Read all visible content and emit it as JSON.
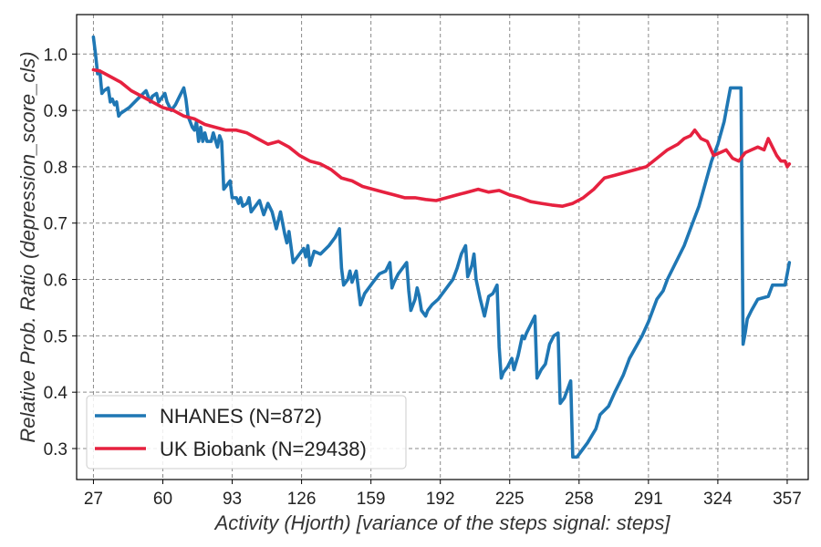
{
  "chart_data": {
    "type": "line",
    "xlabel": "Activity (Hjorth) [variance of the steps signal: steps]",
    "ylabel": "Relative Prob. Ratio (depression_score_cls)",
    "xlim": [
      19,
      367
    ],
    "ylim": [
      0.245,
      1.07
    ],
    "x_ticks": [
      27,
      60,
      93,
      126,
      159,
      192,
      225,
      258,
      291,
      324,
      357
    ],
    "y_ticks": [
      0.3,
      0.4,
      0.5,
      0.6,
      0.7,
      0.8,
      0.9,
      1.0
    ],
    "grid": true,
    "legend_position": "bottom-left",
    "series": [
      {
        "name": "NHANES (N=872)",
        "color": "#1f77b4",
        "points": [
          [
            27,
            1.03
          ],
          [
            28,
            1.0
          ],
          [
            29,
            0.965
          ],
          [
            30,
            0.97
          ],
          [
            31,
            0.93
          ],
          [
            32,
            0.935
          ],
          [
            34,
            0.94
          ],
          [
            35,
            0.915
          ],
          [
            36,
            0.92
          ],
          [
            37,
            0.91
          ],
          [
            38,
            0.915
          ],
          [
            39,
            0.89
          ],
          [
            40,
            0.895
          ],
          [
            44,
            0.905
          ],
          [
            48,
            0.92
          ],
          [
            52,
            0.935
          ],
          [
            54,
            0.915
          ],
          [
            55,
            0.925
          ],
          [
            57,
            0.93
          ],
          [
            58,
            0.915
          ],
          [
            61,
            0.93
          ],
          [
            62,
            0.915
          ],
          [
            64,
            0.9
          ],
          [
            66,
            0.91
          ],
          [
            68,
            0.925
          ],
          [
            70,
            0.94
          ],
          [
            71,
            0.92
          ],
          [
            72,
            0.89
          ],
          [
            74,
            0.87
          ],
          [
            75,
            0.865
          ],
          [
            76,
            0.88
          ],
          [
            77,
            0.845
          ],
          [
            78,
            0.87
          ],
          [
            79,
            0.845
          ],
          [
            80,
            0.86
          ],
          [
            81,
            0.845
          ],
          [
            83,
            0.845
          ],
          [
            84,
            0.86
          ],
          [
            86,
            0.835
          ],
          [
            87,
            0.855
          ],
          [
            88,
            0.845
          ],
          [
            89,
            0.76
          ],
          [
            90,
            0.765
          ],
          [
            92,
            0.775
          ],
          [
            93,
            0.745
          ],
          [
            95,
            0.745
          ],
          [
            96,
            0.735
          ],
          [
            97,
            0.745
          ],
          [
            98,
            0.73
          ],
          [
            100,
            0.735
          ],
          [
            101,
            0.745
          ],
          [
            102,
            0.72
          ],
          [
            104,
            0.73
          ],
          [
            106,
            0.74
          ],
          [
            108,
            0.715
          ],
          [
            110,
            0.735
          ],
          [
            112,
            0.72
          ],
          [
            114,
            0.69
          ],
          [
            116,
            0.72
          ],
          [
            118,
            0.68
          ],
          [
            119,
            0.665
          ],
          [
            120,
            0.685
          ],
          [
            122,
            0.63
          ],
          [
            125,
            0.645
          ],
          [
            127,
            0.655
          ],
          [
            128,
            0.64
          ],
          [
            129,
            0.66
          ],
          [
            130,
            0.625
          ],
          [
            132,
            0.65
          ],
          [
            135,
            0.645
          ],
          [
            139,
            0.66
          ],
          [
            142,
            0.675
          ],
          [
            144,
            0.69
          ],
          [
            145,
            0.62
          ],
          [
            146,
            0.59
          ],
          [
            148,
            0.6
          ],
          [
            149,
            0.615
          ],
          [
            150,
            0.595
          ],
          [
            152,
            0.615
          ],
          [
            154,
            0.555
          ],
          [
            156,
            0.575
          ],
          [
            158,
            0.585
          ],
          [
            160,
            0.595
          ],
          [
            163,
            0.61
          ],
          [
            166,
            0.615
          ],
          [
            168,
            0.63
          ],
          [
            169,
            0.585
          ],
          [
            170,
            0.595
          ],
          [
            172,
            0.61
          ],
          [
            174,
            0.62
          ],
          [
            176,
            0.63
          ],
          [
            177,
            0.58
          ],
          [
            178,
            0.545
          ],
          [
            180,
            0.565
          ],
          [
            181,
            0.585
          ],
          [
            182,
            0.57
          ],
          [
            183,
            0.545
          ],
          [
            185,
            0.535
          ],
          [
            186,
            0.545
          ],
          [
            188,
            0.555
          ],
          [
            191,
            0.565
          ],
          [
            195,
            0.585
          ],
          [
            198,
            0.6
          ],
          [
            200,
            0.62
          ],
          [
            202,
            0.645
          ],
          [
            204,
            0.66
          ],
          [
            205,
            0.605
          ],
          [
            207,
            0.625
          ],
          [
            208,
            0.645
          ],
          [
            209,
            0.6
          ],
          [
            211,
            0.565
          ],
          [
            213,
            0.535
          ],
          [
            215,
            0.57
          ],
          [
            217,
            0.575
          ],
          [
            219,
            0.59
          ],
          [
            220,
            0.48
          ],
          [
            221,
            0.425
          ],
          [
            222,
            0.435
          ],
          [
            224,
            0.445
          ],
          [
            226,
            0.46
          ],
          [
            227,
            0.44
          ],
          [
            229,
            0.465
          ],
          [
            231,
            0.5
          ],
          [
            232,
            0.495
          ],
          [
            233,
            0.505
          ],
          [
            235,
            0.52
          ],
          [
            237,
            0.535
          ],
          [
            238,
            0.425
          ],
          [
            240,
            0.44
          ],
          [
            242,
            0.45
          ],
          [
            244,
            0.485
          ],
          [
            246,
            0.5
          ],
          [
            248,
            0.505
          ],
          [
            249,
            0.38
          ],
          [
            251,
            0.39
          ],
          [
            253,
            0.41
          ],
          [
            254,
            0.42
          ],
          [
            255,
            0.285
          ],
          [
            257,
            0.285
          ],
          [
            260,
            0.3
          ],
          [
            262,
            0.31
          ],
          [
            266,
            0.335
          ],
          [
            268,
            0.36
          ],
          [
            272,
            0.375
          ],
          [
            275,
            0.4
          ],
          [
            279,
            0.43
          ],
          [
            282,
            0.46
          ],
          [
            285,
            0.48
          ],
          [
            288,
            0.5
          ],
          [
            291,
            0.525
          ],
          [
            295,
            0.565
          ],
          [
            298,
            0.58
          ],
          [
            300,
            0.6
          ],
          [
            304,
            0.63
          ],
          [
            308,
            0.66
          ],
          [
            312,
            0.7
          ],
          [
            315,
            0.73
          ],
          [
            318,
            0.77
          ],
          [
            321,
            0.81
          ],
          [
            324,
            0.84
          ],
          [
            327,
            0.88
          ],
          [
            330,
            0.94
          ],
          [
            335,
            0.94
          ],
          [
            336,
            0.485
          ],
          [
            337,
            0.505
          ],
          [
            338,
            0.53
          ],
          [
            340,
            0.545
          ],
          [
            343,
            0.565
          ],
          [
            348,
            0.57
          ],
          [
            350,
            0.59
          ],
          [
            355,
            0.59
          ],
          [
            356,
            0.59
          ],
          [
            357,
            0.61
          ],
          [
            358,
            0.63
          ]
        ]
      },
      {
        "name": "UK Biobank (N=29438)",
        "color": "#e6213f",
        "points": [
          [
            27,
            0.972
          ],
          [
            30,
            0.97
          ],
          [
            35,
            0.96
          ],
          [
            40,
            0.95
          ],
          [
            45,
            0.935
          ],
          [
            50,
            0.925
          ],
          [
            55,
            0.915
          ],
          [
            60,
            0.905
          ],
          [
            65,
            0.9
          ],
          [
            70,
            0.89
          ],
          [
            75,
            0.885
          ],
          [
            80,
            0.875
          ],
          [
            85,
            0.87
          ],
          [
            90,
            0.865
          ],
          [
            95,
            0.865
          ],
          [
            100,
            0.86
          ],
          [
            105,
            0.85
          ],
          [
            110,
            0.84
          ],
          [
            115,
            0.845
          ],
          [
            120,
            0.835
          ],
          [
            125,
            0.82
          ],
          [
            130,
            0.81
          ],
          [
            135,
            0.805
          ],
          [
            140,
            0.795
          ],
          [
            145,
            0.78
          ],
          [
            150,
            0.775
          ],
          [
            155,
            0.765
          ],
          [
            160,
            0.76
          ],
          [
            165,
            0.755
          ],
          [
            170,
            0.75
          ],
          [
            175,
            0.745
          ],
          [
            180,
            0.745
          ],
          [
            185,
            0.742
          ],
          [
            190,
            0.74
          ],
          [
            195,
            0.745
          ],
          [
            200,
            0.75
          ],
          [
            205,
            0.755
          ],
          [
            210,
            0.76
          ],
          [
            215,
            0.755
          ],
          [
            220,
            0.758
          ],
          [
            225,
            0.75
          ],
          [
            230,
            0.745
          ],
          [
            235,
            0.738
          ],
          [
            240,
            0.735
          ],
          [
            245,
            0.732
          ],
          [
            250,
            0.73
          ],
          [
            255,
            0.735
          ],
          [
            260,
            0.745
          ],
          [
            265,
            0.76
          ],
          [
            270,
            0.78
          ],
          [
            275,
            0.785
          ],
          [
            280,
            0.79
          ],
          [
            285,
            0.795
          ],
          [
            290,
            0.8
          ],
          [
            295,
            0.815
          ],
          [
            300,
            0.83
          ],
          [
            305,
            0.84
          ],
          [
            308,
            0.85
          ],
          [
            311,
            0.855
          ],
          [
            313,
            0.865
          ],
          [
            316,
            0.85
          ],
          [
            319,
            0.845
          ],
          [
            322,
            0.82
          ],
          [
            325,
            0.825
          ],
          [
            328,
            0.83
          ],
          [
            331,
            0.815
          ],
          [
            334,
            0.81
          ],
          [
            337,
            0.825
          ],
          [
            340,
            0.83
          ],
          [
            343,
            0.835
          ],
          [
            346,
            0.83
          ],
          [
            348,
            0.85
          ],
          [
            350,
            0.835
          ],
          [
            352,
            0.82
          ],
          [
            354,
            0.81
          ],
          [
            356,
            0.81
          ],
          [
            357,
            0.8
          ],
          [
            358,
            0.805
          ]
        ]
      }
    ]
  }
}
